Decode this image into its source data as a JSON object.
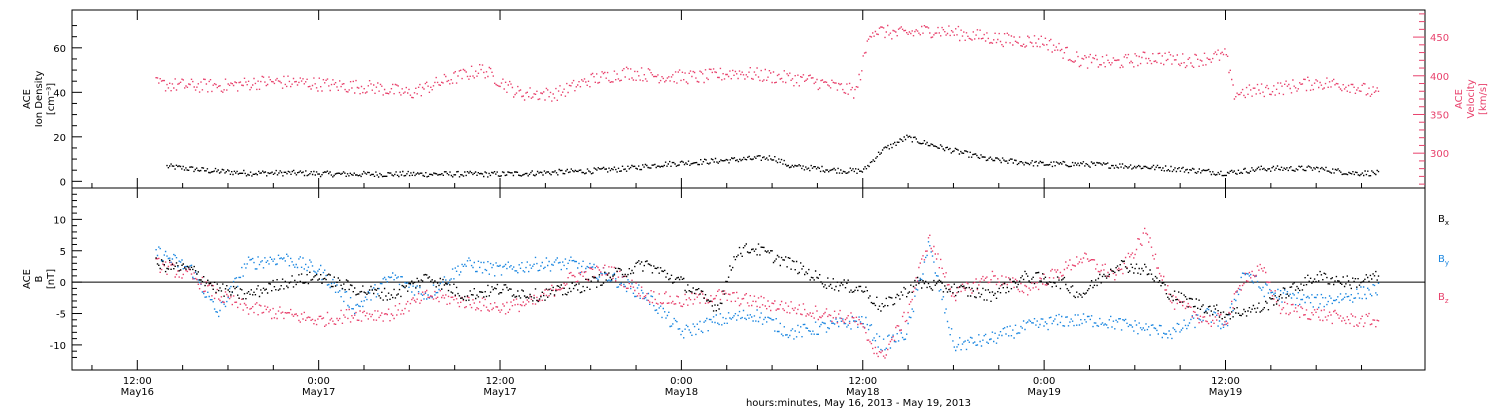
{
  "chart_data": [
    {
      "type": "scatter",
      "panel": "top",
      "ylabel_left": [
        "ACE",
        "Ion Density",
        "[cm⁻³]"
      ],
      "ylabel_right": [
        "ACE",
        "Velocity",
        "[km/s]"
      ],
      "yleft_ticks": [
        "0",
        "20",
        "40",
        "60"
      ],
      "yleft_range": [
        -3,
        77
      ],
      "yright_ticks": [
        "300",
        "350",
        "400",
        "450"
      ],
      "yright_range": [
        255,
        485
      ],
      "colors": {
        "density": "#000000",
        "velocity": "#e8416c"
      },
      "series": [
        {
          "key": "density",
          "axis": "left",
          "points": [
            [
              16.08,
              7
            ],
            [
              16.2,
              5
            ],
            [
              16.3,
              4
            ],
            [
              16.45,
              4
            ],
            [
              16.55,
              3.5
            ],
            [
              16.7,
              3.5
            ],
            [
              16.85,
              3.5
            ],
            [
              17.0,
              3.5
            ],
            [
              17.1,
              4
            ],
            [
              17.25,
              5
            ],
            [
              17.35,
              6
            ],
            [
              17.45,
              8
            ],
            [
              17.55,
              9
            ],
            [
              17.65,
              10
            ],
            [
              17.75,
              11
            ],
            [
              17.8,
              7
            ],
            [
              17.95,
              5
            ],
            [
              18.0,
              5
            ],
            [
              18.05,
              14
            ],
            [
              18.12,
              20
            ],
            [
              18.18,
              17
            ],
            [
              18.25,
              14
            ],
            [
              18.35,
              10
            ],
            [
              18.5,
              8
            ],
            [
              18.6,
              8
            ],
            [
              18.75,
              7
            ],
            [
              18.85,
              6
            ],
            [
              19.0,
              4
            ],
            [
              19.1,
              6
            ],
            [
              19.25,
              6
            ],
            [
              19.35,
              4
            ],
            [
              19.42,
              4
            ]
          ]
        },
        {
          "key": "velocity",
          "axis": "right",
          "points": [
            [
              16.05,
              390
            ],
            [
              16.15,
              388
            ],
            [
              16.25,
              388
            ],
            [
              16.35,
              393
            ],
            [
              16.45,
              392
            ],
            [
              16.55,
              388
            ],
            [
              16.65,
              386
            ],
            [
              16.75,
              378
            ],
            [
              16.85,
              395
            ],
            [
              16.95,
              409
            ],
            [
              17.05,
              378
            ],
            [
              17.15,
              377
            ],
            [
              17.25,
              396
            ],
            [
              17.35,
              405
            ],
            [
              17.45,
              400
            ],
            [
              17.55,
              399
            ],
            [
              17.65,
              405
            ],
            [
              17.75,
              400
            ],
            [
              17.85,
              395
            ],
            [
              17.98,
              380
            ],
            [
              18.02,
              460
            ],
            [
              18.1,
              455
            ],
            [
              18.2,
              460
            ],
            [
              18.3,
              453
            ],
            [
              18.4,
              447
            ],
            [
              18.5,
              445
            ],
            [
              18.6,
              420
            ],
            [
              18.7,
              418
            ],
            [
              18.8,
              425
            ],
            [
              18.9,
              420
            ],
            [
              19.0,
              428
            ],
            [
              19.02,
              378
            ],
            [
              19.15,
              385
            ],
            [
              19.25,
              392
            ],
            [
              19.35,
              388
            ],
            [
              19.42,
              376
            ]
          ]
        }
      ]
    },
    {
      "type": "scatter",
      "panel": "bottom",
      "ylabel_left": [
        "ACE",
        "B",
        "[nT]"
      ],
      "yleft_ticks": [
        "-10",
        "-5",
        "0",
        "5",
        "10"
      ],
      "yleft_range": [
        -14,
        15
      ],
      "colors": {
        "Bx": "#000000",
        "By": "#1a86e0",
        "Bz": "#e8416c"
      },
      "legend": [
        "Bx",
        "By",
        "Bz"
      ],
      "series": [
        {
          "key": "Bx",
          "points": [
            [
              16.05,
              3
            ],
            [
              16.15,
              2
            ],
            [
              16.22,
              -1
            ],
            [
              16.3,
              -2
            ],
            [
              16.4,
              0
            ],
            [
              16.5,
              1
            ],
            [
              16.6,
              -1
            ],
            [
              16.7,
              -2
            ],
            [
              16.8,
              1
            ],
            [
              16.9,
              -2
            ],
            [
              17.0,
              -1
            ],
            [
              17.1,
              -2
            ],
            [
              17.2,
              -1
            ],
            [
              17.3,
              1
            ],
            [
              17.4,
              3
            ],
            [
              17.5,
              0
            ],
            [
              17.6,
              -4
            ],
            [
              17.65,
              5
            ],
            [
              17.7,
              5.5
            ],
            [
              17.8,
              3
            ],
            [
              17.9,
              0
            ],
            [
              18.0,
              -1
            ],
            [
              18.05,
              -4
            ],
            [
              18.15,
              0
            ],
            [
              18.25,
              -1
            ],
            [
              18.35,
              -2
            ],
            [
              18.45,
              1
            ],
            [
              18.55,
              0
            ],
            [
              18.6,
              -2
            ],
            [
              18.7,
              3
            ],
            [
              18.78,
              2
            ],
            [
              18.85,
              -2
            ],
            [
              18.95,
              -4
            ],
            [
              19.0,
              -5
            ],
            [
              19.1,
              -4
            ],
            [
              19.15,
              -2
            ],
            [
              19.25,
              1
            ],
            [
              19.35,
              0
            ],
            [
              19.42,
              1
            ]
          ]
        },
        {
          "key": "By",
          "points": [
            [
              16.05,
              5
            ],
            [
              16.15,
              2
            ],
            [
              16.22,
              -5
            ],
            [
              16.3,
              3
            ],
            [
              16.4,
              4
            ],
            [
              16.5,
              2
            ],
            [
              16.6,
              -4
            ],
            [
              16.7,
              1
            ],
            [
              16.8,
              -2
            ],
            [
              16.9,
              3
            ],
            [
              17.0,
              2
            ],
            [
              17.1,
              3
            ],
            [
              17.2,
              3
            ],
            [
              17.3,
              1
            ],
            [
              17.4,
              -2
            ],
            [
              17.5,
              -8
            ],
            [
              17.6,
              -6
            ],
            [
              17.7,
              -5
            ],
            [
              17.8,
              -8
            ],
            [
              17.9,
              -7
            ],
            [
              18.0,
              -6
            ],
            [
              18.05,
              -10
            ],
            [
              18.12,
              -8
            ],
            [
              18.18,
              6
            ],
            [
              18.25,
              -10
            ],
            [
              18.35,
              -9
            ],
            [
              18.45,
              -7
            ],
            [
              18.55,
              -6
            ],
            [
              18.65,
              -6
            ],
            [
              18.75,
              -7
            ],
            [
              18.85,
              -8
            ],
            [
              18.95,
              -5
            ],
            [
              19.0,
              -7
            ],
            [
              19.05,
              2
            ],
            [
              19.1,
              -1
            ],
            [
              19.15,
              -2
            ],
            [
              19.25,
              -3
            ],
            [
              19.35,
              -2
            ],
            [
              19.42,
              -1
            ]
          ]
        },
        {
          "key": "Bz",
          "points": [
            [
              16.05,
              3
            ],
            [
              16.15,
              1
            ],
            [
              16.22,
              -2
            ],
            [
              16.3,
              -4
            ],
            [
              16.4,
              -5
            ],
            [
              16.5,
              -6
            ],
            [
              16.6,
              -5
            ],
            [
              16.7,
              -5
            ],
            [
              16.8,
              -2
            ],
            [
              16.9,
              -3
            ],
            [
              17.0,
              -4
            ],
            [
              17.1,
              -3
            ],
            [
              17.2,
              1
            ],
            [
              17.3,
              2
            ],
            [
              17.4,
              -2
            ],
            [
              17.5,
              -3
            ],
            [
              17.6,
              -2
            ],
            [
              17.7,
              -3
            ],
            [
              17.8,
              -4
            ],
            [
              17.9,
              -5
            ],
            [
              17.98,
              -6
            ],
            [
              18.05,
              -12
            ],
            [
              18.12,
              -5
            ],
            [
              18.18,
              7
            ],
            [
              18.25,
              -2
            ],
            [
              18.35,
              1
            ],
            [
              18.45,
              -1
            ],
            [
              18.55,
              2
            ],
            [
              18.6,
              4
            ],
            [
              18.7,
              1
            ],
            [
              18.78,
              8
            ],
            [
              18.85,
              -3
            ],
            [
              18.95,
              -6
            ],
            [
              19.0,
              -6
            ],
            [
              19.05,
              1
            ],
            [
              19.1,
              2
            ],
            [
              19.15,
              -4
            ],
            [
              19.25,
              -5
            ],
            [
              19.35,
              -6
            ],
            [
              19.42,
              -6
            ]
          ]
        }
      ]
    }
  ],
  "x_axis": {
    "range": [
      15.82,
      19.55
    ],
    "ticks": [
      {
        "x": 16.0,
        "time": "12:00",
        "date": "May16"
      },
      {
        "x": 16.5,
        "time": "0:00",
        "date": "May17"
      },
      {
        "x": 17.0,
        "time": "12:00",
        "date": "May17"
      },
      {
        "x": 17.5,
        "time": "0:00",
        "date": "May18"
      },
      {
        "x": 18.0,
        "time": "12:00",
        "date": "May18"
      },
      {
        "x": 18.5,
        "time": "0:00",
        "date": "May19"
      },
      {
        "x": 19.0,
        "time": "12:00",
        "date": "May19"
      }
    ],
    "title": "hours:minutes, May 16, 2013 - May 19, 2013"
  }
}
